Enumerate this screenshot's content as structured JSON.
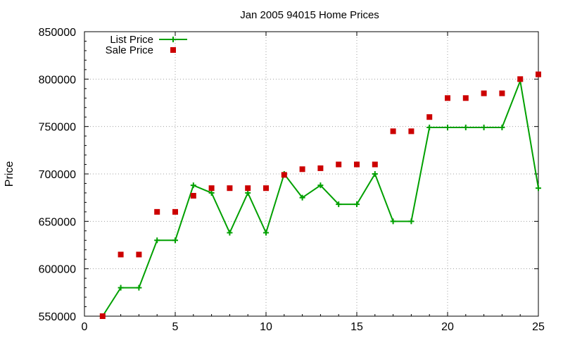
{
  "chart_data": {
    "type": "line",
    "title": "Jan 2005 94015 Home Prices",
    "xlabel": "",
    "ylabel": "Price",
    "xlim": [
      0,
      25
    ],
    "ylim": [
      550000,
      850000
    ],
    "x_ticks": [
      "0",
      "5",
      "10",
      "15",
      "20",
      "25"
    ],
    "y_ticks": [
      "550000",
      "600000",
      "650000",
      "700000",
      "750000",
      "800000",
      "850000"
    ],
    "grid": true,
    "legend_position": "top-left",
    "series": [
      {
        "name": "List Price",
        "style": "linespoints",
        "color": "#00a000",
        "x": [
          1,
          2,
          3,
          4,
          5,
          6,
          7,
          8,
          9,
          10,
          11,
          12,
          13,
          14,
          15,
          16,
          17,
          18,
          19,
          20,
          21,
          22,
          23,
          24,
          25
        ],
        "values": [
          550000,
          580000,
          580000,
          630000,
          630000,
          688000,
          680000,
          638000,
          680000,
          638000,
          700000,
          675000,
          688000,
          668000,
          668000,
          700000,
          650000,
          650000,
          749000,
          749000,
          749000,
          749000,
          749000,
          798000,
          685000
        ]
      },
      {
        "name": "Sale Price",
        "style": "points",
        "color": "#cc0000",
        "x": [
          1,
          2,
          3,
          4,
          5,
          6,
          7,
          8,
          9,
          10,
          11,
          12,
          13,
          14,
          15,
          16,
          17,
          18,
          19,
          20,
          21,
          22,
          23,
          24,
          25
        ],
        "values": [
          550000,
          615000,
          615000,
          660000,
          660000,
          677000,
          685000,
          685000,
          685000,
          685000,
          699000,
          705000,
          706000,
          710000,
          710000,
          710000,
          745000,
          745000,
          760000,
          780000,
          780000,
          785000,
          785000,
          800000,
          805000
        ]
      }
    ]
  }
}
